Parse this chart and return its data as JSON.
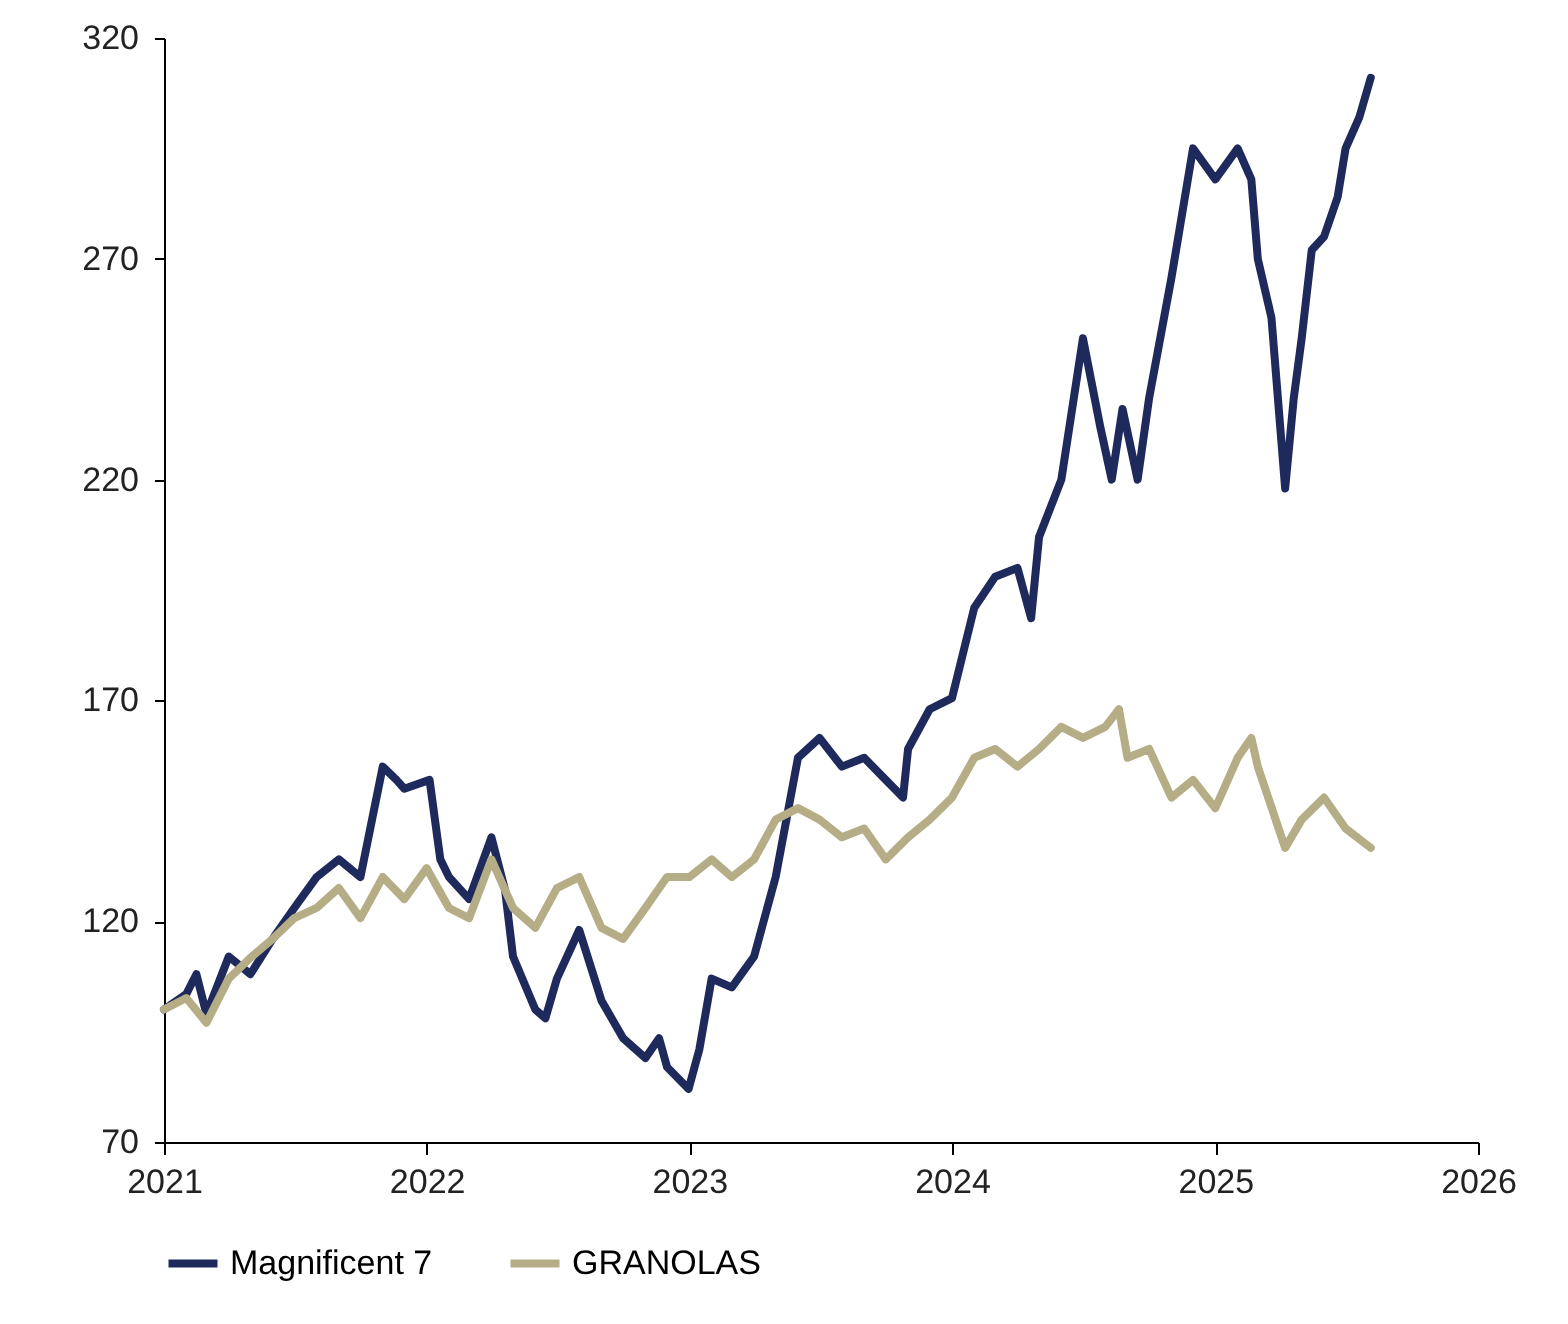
{
  "chart_data": {
    "type": "line",
    "legend": "bottom",
    "grid": false,
    "line_style": "solid",
    "xlim": [
      "2021-01-01",
      "2026-01-01"
    ],
    "xticks": [
      {
        "value": "2021-01-01",
        "label": "2021"
      },
      {
        "value": "2022-01-01",
        "label": "2022"
      },
      {
        "value": "2023-01-01",
        "label": "2023"
      },
      {
        "value": "2024-01-01",
        "label": "2024"
      },
      {
        "value": "2025-01-01",
        "label": "2025"
      },
      {
        "value": "2026-01-01",
        "label": "2026"
      }
    ],
    "ylim": [
      70,
      320
    ],
    "yticks": [
      70,
      120,
      170,
      220,
      270,
      320
    ],
    "series": [
      {
        "name": "Magnificent 7",
        "color": "#1f2a5c",
        "x": [
          "2021-01-01",
          "2021-02-01",
          "2021-02-15",
          "2021-03-01",
          "2021-04-01",
          "2021-05-01",
          "2021-06-01",
          "2021-07-01",
          "2021-08-01",
          "2021-09-01",
          "2021-10-01",
          "2021-11-01",
          "2021-11-20",
          "2021-12-01",
          "2022-01-05",
          "2022-01-20",
          "2022-02-01",
          "2022-03-01",
          "2022-04-01",
          "2022-04-20",
          "2022-05-01",
          "2022-06-01",
          "2022-06-15",
          "2022-07-01",
          "2022-08-01",
          "2022-09-01",
          "2022-10-01",
          "2022-11-01",
          "2022-11-20",
          "2022-12-01",
          "2022-12-31",
          "2023-01-15",
          "2023-02-01",
          "2023-03-01",
          "2023-04-01",
          "2023-05-01",
          "2023-06-01",
          "2023-07-01",
          "2023-08-01",
          "2023-09-01",
          "2023-10-01",
          "2023-10-25",
          "2023-11-01",
          "2023-12-01",
          "2024-01-01",
          "2024-02-01",
          "2024-03-01",
          "2024-04-01",
          "2024-04-20",
          "2024-05-01",
          "2024-06-01",
          "2024-07-01",
          "2024-07-25",
          "2024-08-10",
          "2024-08-25",
          "2024-09-15",
          "2024-10-01",
          "2024-11-01",
          "2024-12-01",
          "2025-01-01",
          "2025-02-01",
          "2025-02-20",
          "2025-03-01",
          "2025-03-20",
          "2025-04-08",
          "2025-04-20",
          "2025-05-01",
          "2025-05-15",
          "2025-06-01",
          "2025-06-20",
          "2025-07-01",
          "2025-07-20",
          "2025-08-05"
        ],
        "values": [
          100,
          103.5,
          108,
          99,
          112,
          108,
          116,
          123,
          130,
          134,
          130,
          155,
          152,
          150,
          152,
          134,
          130,
          125,
          139,
          127,
          112,
          100,
          98,
          107,
          118,
          102,
          93.5,
          89,
          93.5,
          87,
          82,
          91,
          107,
          105,
          112,
          130,
          157,
          161.5,
          155,
          157,
          152,
          148,
          159,
          168,
          170.5,
          191,
          198,
          200,
          188.6,
          207,
          220,
          252,
          232,
          220,
          236,
          220,
          238.5,
          265.7,
          295,
          288,
          295,
          288,
          270,
          256.6,
          218,
          238.5,
          252,
          272,
          275,
          284,
          295,
          302,
          311
        ]
      },
      {
        "name": "GRANOLAS",
        "color": "#b5ad86",
        "x": [
          "2021-01-01",
          "2021-02-01",
          "2021-03-01",
          "2021-04-01",
          "2021-05-01",
          "2021-06-01",
          "2021-07-01",
          "2021-08-01",
          "2021-09-01",
          "2021-10-01",
          "2021-11-01",
          "2021-12-01",
          "2022-01-01",
          "2022-02-01",
          "2022-03-01",
          "2022-04-01",
          "2022-05-01",
          "2022-06-01",
          "2022-07-01",
          "2022-08-01",
          "2022-09-01",
          "2022-10-01",
          "2022-11-01",
          "2022-12-01",
          "2023-01-01",
          "2023-02-01",
          "2023-03-01",
          "2023-04-01",
          "2023-05-01",
          "2023-06-01",
          "2023-07-01",
          "2023-08-01",
          "2023-09-01",
          "2023-10-01",
          "2023-11-01",
          "2023-12-01",
          "2024-01-01",
          "2024-02-01",
          "2024-03-01",
          "2024-04-01",
          "2024-05-01",
          "2024-06-01",
          "2024-07-01",
          "2024-08-01",
          "2024-08-20",
          "2024-09-01",
          "2024-10-01",
          "2024-11-01",
          "2024-12-01",
          "2025-01-01",
          "2025-02-01",
          "2025-02-20",
          "2025-03-01",
          "2025-04-08",
          "2025-05-01",
          "2025-06-01",
          "2025-07-01",
          "2025-08-05"
        ],
        "values": [
          100,
          102.6,
          97,
          107,
          111.7,
          116,
          120.7,
          123,
          127.5,
          120.7,
          130,
          125,
          132,
          123,
          120.7,
          134,
          123,
          118.5,
          127.5,
          130,
          118.5,
          116,
          123,
          130,
          130,
          134,
          130,
          134,
          143,
          145.6,
          143,
          139,
          141,
          134,
          139,
          143,
          148,
          157,
          159,
          155,
          159,
          164,
          161.5,
          164,
          168,
          157,
          159,
          148,
          152,
          145.6,
          157,
          161.5,
          155,
          136.6,
          143,
          148,
          141,
          136.6
        ]
      }
    ]
  }
}
